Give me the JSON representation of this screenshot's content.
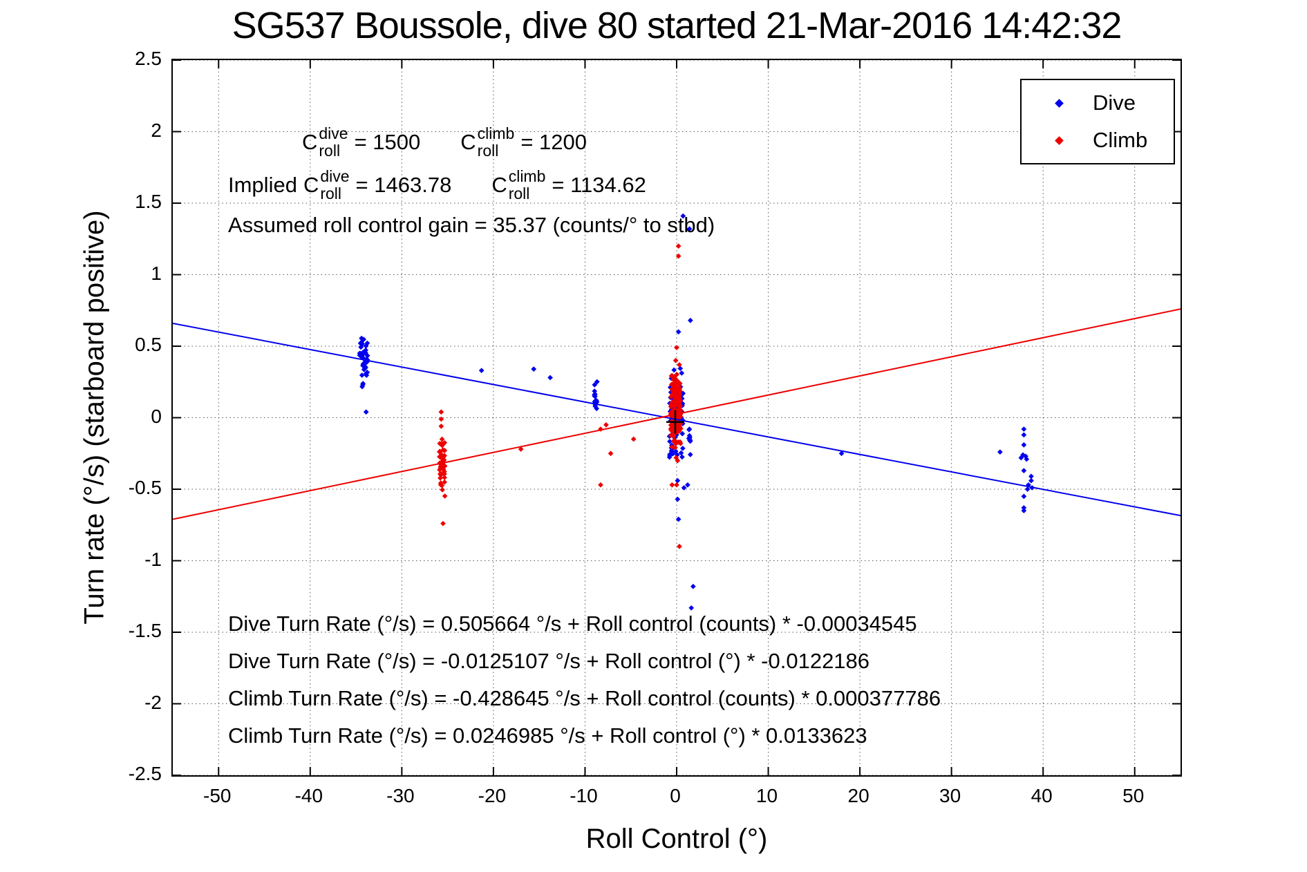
{
  "title": "SG537 Boussole, dive 80 started 21-Mar-2016 14:42:32",
  "legend": {
    "items": [
      {
        "label": "Dive",
        "color": "#0000ee"
      },
      {
        "label": "Climb",
        "color": "#ee0000"
      }
    ]
  },
  "annotations": {
    "row1": {
      "c1base": "C",
      "c1sup": "dive",
      "c1sub": "roll",
      "c1eq": "= 1500",
      "c2base": "C",
      "c2sup": "climb",
      "c2sub": "roll",
      "c2eq": "= 1200"
    },
    "row2": {
      "prefix": "Implied",
      "c1base": "C",
      "c1sup": "dive",
      "c1sub": "roll",
      "c1eq": "= 1463.78",
      "c2base": "C",
      "c2sup": "climb",
      "c2sub": "roll",
      "c2eq": "= 1134.62"
    },
    "row3": "Assumed roll control gain = 35.37 (counts/° to stbd)"
  },
  "equations": [
    "Dive Turn Rate (°/s) = 0.505664 °/s + Roll control (counts) * -0.00034545",
    "Dive Turn Rate (°/s) = -0.0125107 °/s + Roll control (°) * -0.0122186",
    "Climb Turn Rate (°/s) = -0.428645 °/s + Roll control (counts) * 0.000377786",
    "Climb Turn Rate (°/s) = 0.0246985 °/s + Roll control (°) * 0.0133623"
  ],
  "chart_data": {
    "type": "scatter",
    "title": "SG537 Boussole, dive 80 started 21-Mar-2016 14:42:32",
    "xlabel": "Roll Control (°)",
    "ylabel": "Turn rate (°/s) (starboard positive)",
    "xlim": [
      -55,
      55
    ],
    "ylim": [
      -2.5,
      2.5
    ],
    "xticks": [
      -50,
      -40,
      -30,
      -20,
      -10,
      0,
      10,
      20,
      30,
      40,
      50
    ],
    "yticks": [
      -2.5,
      -2,
      -1.5,
      -1,
      -0.5,
      0,
      0.5,
      1,
      1.5,
      2,
      2.5
    ],
    "xtick_labels": [
      "-50",
      "-40",
      "-30",
      "-20",
      "-10",
      "0",
      "10",
      "20",
      "30",
      "40",
      "50"
    ],
    "ytick_labels": [
      "-2.5",
      "-2",
      "-1.5",
      "-1",
      "-0.5",
      "0",
      "0.5",
      "1",
      "1.5",
      "2",
      "2.5"
    ],
    "grid": true,
    "legend_position": "top-right",
    "series": [
      {
        "name": "Dive",
        "color": "#0000ee",
        "points": [
          [
            -33.9,
            0.04
          ],
          [
            -21.3,
            0.33
          ],
          [
            -15.6,
            0.34
          ],
          [
            -13.8,
            0.28
          ],
          [
            0.2,
            0.6
          ],
          [
            1.5,
            0.68
          ],
          [
            0.7,
            1.41
          ],
          [
            1.4,
            1.32
          ],
          [
            0.1,
            -0.44
          ],
          [
            0.8,
            -0.49
          ],
          [
            1.2,
            -0.47
          ],
          [
            0.1,
            -0.57
          ],
          [
            0.2,
            -0.71
          ],
          [
            1.8,
            -1.18
          ],
          [
            1.6,
            -1.33
          ],
          [
            18.0,
            -0.25
          ],
          [
            35.3,
            -0.24
          ],
          [
            37.9,
            -0.08
          ],
          [
            37.9,
            -0.12
          ],
          [
            37.9,
            -0.19
          ],
          [
            37.8,
            -0.26
          ],
          [
            38.1,
            -0.27
          ],
          [
            37.6,
            -0.28
          ],
          [
            38.2,
            -0.29
          ],
          [
            37.9,
            -0.37
          ],
          [
            38.7,
            -0.41
          ],
          [
            38.7,
            -0.44
          ],
          [
            38.4,
            -0.47
          ],
          [
            38.8,
            -0.49
          ],
          [
            38.3,
            -0.5
          ],
          [
            37.9,
            -0.55
          ],
          [
            37.9,
            -0.63
          ],
          [
            37.9,
            -0.65
          ]
        ],
        "clusters": [
          {
            "cx": -34.2,
            "xjitter": 0.45,
            "ymin": 0.19,
            "ymax": 0.63,
            "n": 42,
            "seed": 7
          },
          {
            "cx": -8.8,
            "xjitter": 0.18,
            "ymin": -0.02,
            "ymax": 0.3,
            "n": 14,
            "seed": 11
          },
          {
            "cx": -0.05,
            "xjitter": 0.75,
            "ymin": -0.35,
            "ymax": 0.36,
            "n": 80,
            "seed": 13
          },
          {
            "cx": 1.45,
            "xjitter": 0.12,
            "ymin": -0.33,
            "ymax": 0.06,
            "n": 10,
            "seed": 17
          }
        ]
      },
      {
        "name": "Climb",
        "color": "#ee0000",
        "points": [
          [
            -25.7,
            0.04
          ],
          [
            -25.7,
            -0.01
          ],
          [
            -25.7,
            -0.06
          ],
          [
            -25.5,
            -0.74
          ],
          [
            -17.0,
            -0.22
          ],
          [
            -8.3,
            -0.08
          ],
          [
            -7.7,
            -0.05
          ],
          [
            -7.2,
            -0.25
          ],
          [
            -8.3,
            -0.47
          ],
          [
            -4.7,
            -0.15
          ],
          [
            0.0,
            0.49
          ],
          [
            -0.1,
            0.4
          ],
          [
            0.3,
            0.37
          ],
          [
            0.2,
            1.2
          ],
          [
            0.2,
            1.13
          ],
          [
            0.1,
            -0.3
          ],
          [
            -0.05,
            -0.28
          ],
          [
            0.0,
            -0.47
          ],
          [
            -0.5,
            -0.47
          ],
          [
            0.3,
            -0.9
          ]
        ],
        "clusters": [
          {
            "cx": -25.6,
            "xjitter": 0.3,
            "ymin": -0.57,
            "ymax": -0.08,
            "n": 45,
            "seed": 23
          },
          {
            "cx": -0.1,
            "xjitter": 0.55,
            "ymin": -0.22,
            "ymax": 0.32,
            "n": 150,
            "seed": 29
          }
        ]
      }
    ],
    "fit_lines": [
      {
        "name": "dive-fit",
        "color": "#0000ee",
        "intercept": -0.0125107,
        "slope": -0.0122186
      },
      {
        "name": "climb-fit",
        "color": "#ee0000",
        "intercept": 0.0246985,
        "slope": 0.0133623
      }
    ],
    "median_marker": {
      "x": -0.15,
      "y": -0.03,
      "color": "#000000"
    }
  }
}
